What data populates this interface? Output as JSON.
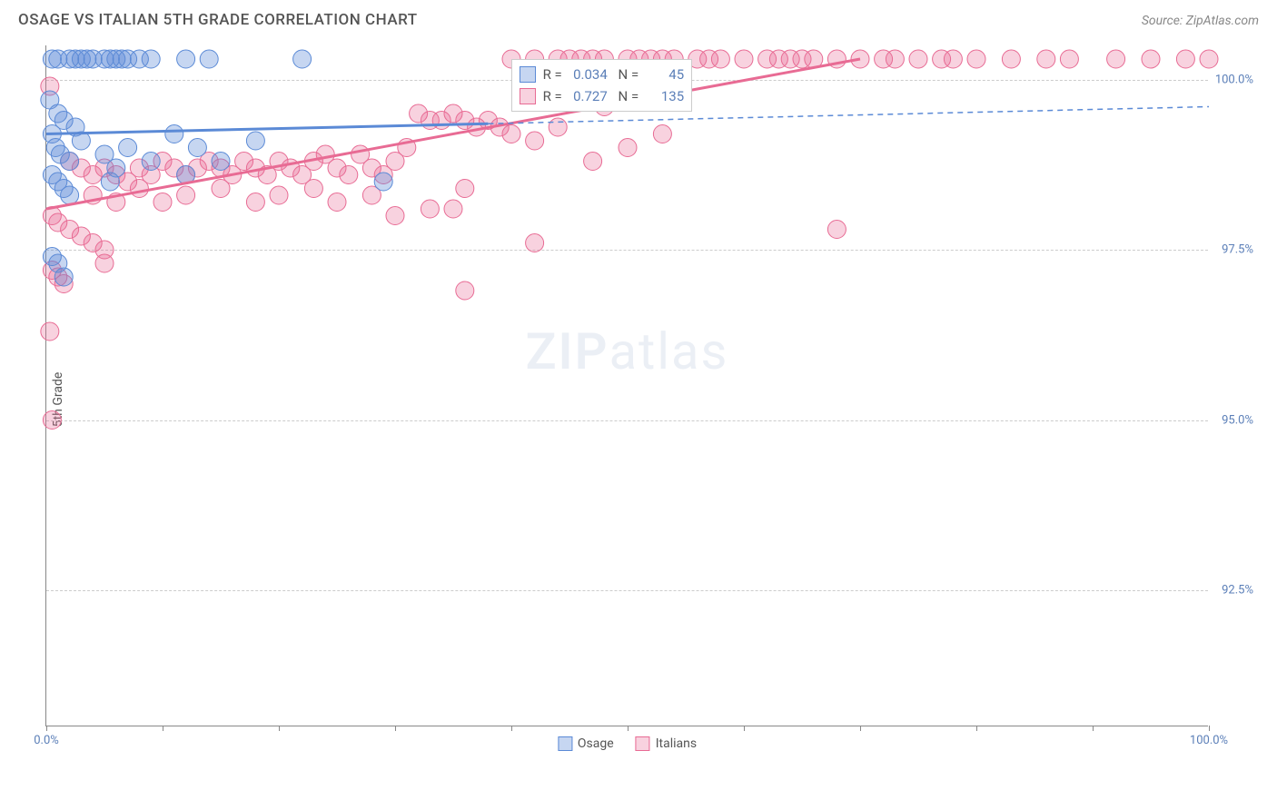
{
  "header": {
    "title": "OSAGE VS ITALIAN 5TH GRADE CORRELATION CHART",
    "source": "Source: ZipAtlas.com"
  },
  "yaxis": {
    "label": "5th Grade"
  },
  "watermark": {
    "text_a": "ZIP",
    "text_b": "atlas"
  },
  "chart": {
    "type": "scatter",
    "xlim": [
      0,
      100
    ],
    "ylim": [
      90.5,
      100.5
    ],
    "yticks": [
      92.5,
      95.0,
      97.5,
      100.0
    ],
    "ytick_labels": [
      "92.5%",
      "95.0%",
      "97.5%",
      "100.0%"
    ],
    "xticks": [
      0,
      10,
      20,
      30,
      40,
      50,
      60,
      70,
      80,
      90,
      100
    ],
    "xtick_labels": {
      "0": "0.0%",
      "100": "100.0%"
    },
    "grid_color": "#d0d0d0",
    "axis_color": "#888888",
    "background_color": "#ffffff",
    "tick_font_color": "#5b7fb8",
    "tick_fontsize": 13,
    "series": {
      "osage": {
        "label": "Osage",
        "color_fill": "rgba(91,138,214,0.35)",
        "color_stroke": "#5b8ad6",
        "marker_r": 10,
        "trend": {
          "x1": 0,
          "y1": 99.2,
          "x2": 38,
          "y2": 99.35,
          "dash_to_x": 100,
          "dash_to_y": 99.6,
          "stroke_width": 3
        },
        "stats": {
          "R": "0.034",
          "N": "45"
        },
        "points": [
          [
            0.5,
            100.3
          ],
          [
            1,
            100.3
          ],
          [
            2,
            100.3
          ],
          [
            2.5,
            100.3
          ],
          [
            3,
            100.3
          ],
          [
            3.5,
            100.3
          ],
          [
            4,
            100.3
          ],
          [
            5,
            100.3
          ],
          [
            5.5,
            100.3
          ],
          [
            6,
            100.3
          ],
          [
            6.5,
            100.3
          ],
          [
            7,
            100.3
          ],
          [
            8,
            100.3
          ],
          [
            9,
            100.3
          ],
          [
            12,
            100.3
          ],
          [
            14,
            100.3
          ],
          [
            22,
            100.3
          ],
          [
            0.3,
            99.7
          ],
          [
            1,
            99.5
          ],
          [
            1.5,
            99.4
          ],
          [
            0.5,
            99.2
          ],
          [
            0.8,
            99.0
          ],
          [
            1.2,
            98.9
          ],
          [
            2.5,
            99.3
          ],
          [
            3,
            99.1
          ],
          [
            2,
            98.8
          ],
          [
            0.5,
            98.6
          ],
          [
            1,
            98.5
          ],
          [
            1.5,
            98.4
          ],
          [
            2,
            98.3
          ],
          [
            5,
            98.9
          ],
          [
            6,
            98.7
          ],
          [
            5.5,
            98.5
          ],
          [
            7,
            99.0
          ],
          [
            9,
            98.8
          ],
          [
            11,
            99.2
          ],
          [
            12,
            98.6
          ],
          [
            13,
            99.0
          ],
          [
            15,
            98.8
          ],
          [
            18,
            99.1
          ],
          [
            29,
            98.5
          ],
          [
            0.5,
            97.4
          ],
          [
            1,
            97.3
          ],
          [
            1.5,
            97.1
          ]
        ]
      },
      "italians": {
        "label": "Italians",
        "color_fill": "rgba(232,107,148,0.3)",
        "color_stroke": "#e86b94",
        "marker_r": 10,
        "trend": {
          "x1": 0,
          "y1": 98.1,
          "x2": 70,
          "y2": 100.3,
          "stroke_width": 3
        },
        "stats": {
          "R": "0.727",
          "N": "135"
        },
        "points": [
          [
            40,
            100.3
          ],
          [
            42,
            100.3
          ],
          [
            44,
            100.3
          ],
          [
            45,
            100.3
          ],
          [
            46,
            100.3
          ],
          [
            47,
            100.3
          ],
          [
            48,
            100.3
          ],
          [
            50,
            100.3
          ],
          [
            51,
            100.3
          ],
          [
            52,
            100.3
          ],
          [
            53,
            100.3
          ],
          [
            54,
            100.3
          ],
          [
            56,
            100.3
          ],
          [
            57,
            100.3
          ],
          [
            58,
            100.3
          ],
          [
            60,
            100.3
          ],
          [
            62,
            100.3
          ],
          [
            63,
            100.3
          ],
          [
            64,
            100.3
          ],
          [
            65,
            100.3
          ],
          [
            66,
            100.3
          ],
          [
            68,
            100.3
          ],
          [
            70,
            100.3
          ],
          [
            72,
            100.3
          ],
          [
            73,
            100.3
          ],
          [
            75,
            100.3
          ],
          [
            77,
            100.3
          ],
          [
            78,
            100.3
          ],
          [
            80,
            100.3
          ],
          [
            83,
            100.3
          ],
          [
            86,
            100.3
          ],
          [
            88,
            100.3
          ],
          [
            92,
            100.3
          ],
          [
            95,
            100.3
          ],
          [
            98,
            100.3
          ],
          [
            100,
            100.3
          ],
          [
            32,
            99.5
          ],
          [
            33,
            99.4
          ],
          [
            34,
            99.4
          ],
          [
            35,
            99.5
          ],
          [
            36,
            99.4
          ],
          [
            37,
            99.3
          ],
          [
            38,
            99.4
          ],
          [
            39,
            99.3
          ],
          [
            40,
            99.2
          ],
          [
            42,
            99.1
          ],
          [
            44,
            99.3
          ],
          [
            47,
            98.8
          ],
          [
            48,
            99.6
          ],
          [
            50,
            99.0
          ],
          [
            53,
            99.2
          ],
          [
            2,
            98.8
          ],
          [
            3,
            98.7
          ],
          [
            4,
            98.6
          ],
          [
            5,
            98.7
          ],
          [
            6,
            98.6
          ],
          [
            7,
            98.5
          ],
          [
            8,
            98.7
          ],
          [
            9,
            98.6
          ],
          [
            10,
            98.8
          ],
          [
            11,
            98.7
          ],
          [
            12,
            98.6
          ],
          [
            13,
            98.7
          ],
          [
            14,
            98.8
          ],
          [
            15,
            98.7
          ],
          [
            16,
            98.6
          ],
          [
            17,
            98.8
          ],
          [
            18,
            98.7
          ],
          [
            19,
            98.6
          ],
          [
            20,
            98.8
          ],
          [
            21,
            98.7
          ],
          [
            22,
            98.6
          ],
          [
            23,
            98.8
          ],
          [
            24,
            98.9
          ],
          [
            25,
            98.7
          ],
          [
            26,
            98.6
          ],
          [
            27,
            98.9
          ],
          [
            28,
            98.7
          ],
          [
            29,
            98.6
          ],
          [
            30,
            98.8
          ],
          [
            31,
            99.0
          ],
          [
            4,
            98.3
          ],
          [
            6,
            98.2
          ],
          [
            8,
            98.4
          ],
          [
            10,
            98.2
          ],
          [
            12,
            98.3
          ],
          [
            15,
            98.4
          ],
          [
            18,
            98.2
          ],
          [
            20,
            98.3
          ],
          [
            23,
            98.4
          ],
          [
            25,
            98.2
          ],
          [
            28,
            98.3
          ],
          [
            0.5,
            98.0
          ],
          [
            1,
            97.9
          ],
          [
            2,
            97.8
          ],
          [
            3,
            97.7
          ],
          [
            4,
            97.6
          ],
          [
            5,
            97.5
          ],
          [
            0.5,
            97.2
          ],
          [
            1,
            97.1
          ],
          [
            1.5,
            97.0
          ],
          [
            5,
            97.3
          ],
          [
            0.3,
            96.3
          ],
          [
            0.5,
            95.0
          ],
          [
            36,
            96.9
          ],
          [
            42,
            97.6
          ],
          [
            35,
            98.1
          ],
          [
            33,
            98.1
          ],
          [
            30,
            98.0
          ],
          [
            36,
            98.4
          ],
          [
            68,
            97.8
          ],
          [
            0.3,
            99.9
          ]
        ]
      }
    },
    "bottom_legend": [
      {
        "label": "Osage",
        "fill": "rgba(91,138,214,0.35)",
        "stroke": "#5b8ad6"
      },
      {
        "label": "Italians",
        "fill": "rgba(232,107,148,0.3)",
        "stroke": "#e86b94"
      }
    ],
    "stats_legend": {
      "left_pct": 40,
      "top_pct": 2
    }
  }
}
